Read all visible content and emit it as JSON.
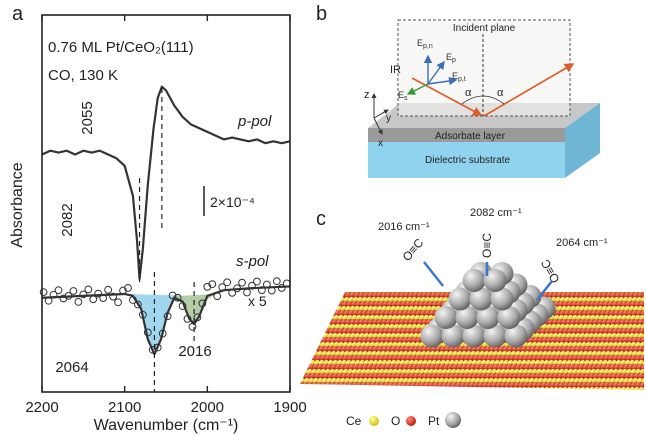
{
  "panel_labels": [
    "a",
    "b",
    "c"
  ],
  "chart_data": {
    "type": "line",
    "annotations": [
      "0.76 ML Pt/CeO₂(111)",
      "CO, 130 K"
    ],
    "x_label": "Wavenumber (cm⁻¹)",
    "y_label": "Absorbance",
    "xlim": [
      2200,
      1900
    ],
    "xticks": [
      2200,
      2100,
      2000,
      1900
    ],
    "ylim": [
      0,
      100
    ],
    "vlines": [
      2082,
      2055,
      2064,
      2016
    ],
    "scale_bar": "2×10⁻⁴",
    "multiplier": "x 5",
    "series": [
      {
        "name": "p-pol",
        "style": "line",
        "color": "#333333",
        "x": [
          2200,
          2190,
          2180,
          2170,
          2160,
          2150,
          2140,
          2130,
          2120,
          2110,
          2100,
          2090,
          2085,
          2082,
          2078,
          2072,
          2065,
          2060,
          2055,
          2050,
          2040,
          2030,
          2020,
          2010,
          2000,
          1990,
          1980,
          1970,
          1960,
          1950,
          1940,
          1930,
          1920,
          1910,
          1900
        ],
        "values": [
          63,
          64,
          63.5,
          64,
          63,
          64,
          63.5,
          64,
          63,
          62,
          60,
          52,
          40,
          30,
          38,
          55,
          70,
          78,
          81,
          80,
          76,
          73,
          71,
          70,
          69,
          68,
          67,
          67.5,
          67,
          66.5,
          67,
          66,
          66.5,
          66,
          66.5
        ]
      },
      {
        "name": "s-pol",
        "style": "line",
        "color": "#333333",
        "x": [
          2200,
          2150,
          2100,
          2090,
          2080,
          2072,
          2064,
          2056,
          2048,
          2040,
          2030,
          2022,
          2016,
          2010,
          2000,
          1980,
          1950,
          1900
        ],
        "values": [
          25,
          25.5,
          26,
          25.5,
          22,
          14,
          10,
          14,
          21,
          25,
          24,
          19.5,
          18,
          20,
          25.5,
          27,
          27.5,
          28
        ]
      },
      {
        "style": "points",
        "color": "#333333",
        "x": [
          2198,
          2192,
          2186,
          2180,
          2174,
          2168,
          2162,
          2156,
          2150,
          2144,
          2138,
          2132,
          2126,
          2120,
          2114,
          2108,
          2102,
          2096,
          2090,
          2084,
          2078,
          2072,
          2066,
          2060,
          2054,
          2048,
          2042,
          2036,
          2030,
          2024,
          2018,
          2012,
          2006,
          2000,
          1994,
          1988,
          1982,
          1976,
          1970,
          1964,
          1958,
          1952,
          1946,
          1940,
          1934,
          1928,
          1922,
          1916,
          1910,
          1904
        ],
        "values": [
          26.5,
          24.2,
          25.8,
          27,
          24.8,
          25.5,
          26.8,
          23.9,
          25.9,
          27.2,
          24.6,
          26.1,
          24.9,
          27.1,
          25.3,
          23.8,
          26.9,
          27.6,
          24.4,
          23.2,
          20.5,
          15.8,
          11.2,
          11.8,
          15.5,
          20.1,
          25.6,
          25,
          22.8,
          19.4,
          17.3,
          19.8,
          23.5,
          27.9,
          28.6,
          25.4,
          27.8,
          29.1,
          26.3,
          27.5,
          29,
          26.4,
          28.2,
          29.3,
          27,
          28.5,
          26.9,
          29.4,
          27.6,
          28.8
        ]
      },
      {
        "style": "area",
        "color": "#8fd0ec",
        "x": [
          2100,
          2090,
          2080,
          2072,
          2064,
          2056,
          2048,
          2040,
          2030
        ],
        "values": [
          26,
          25.8,
          22,
          14,
          10,
          14,
          21,
          25,
          25.6
        ]
      },
      {
        "style": "area",
        "color": "#a8c496",
        "x": [
          2040,
          2030,
          2022,
          2016,
          2010,
          2000,
          1990
        ],
        "values": [
          25.4,
          24,
          19.5,
          18,
          20,
          24.5,
          26
        ]
      }
    ]
  },
  "diagram_b": {
    "plane": "Incident plane",
    "beam": "IR",
    "fields": [
      "E",
      "E",
      "E",
      "E"
    ],
    "field_subs": [
      "p,n",
      "p",
      "p,t",
      "s"
    ],
    "angles": [
      "α",
      "α"
    ],
    "axes": [
      "z",
      "y",
      "x"
    ],
    "layers": [
      "Adsorbate layer",
      "Dielectric substrate"
    ]
  },
  "illustration_c": {
    "frequencies": [
      "2016 cm⁻¹",
      "2082 cm⁻¹",
      "2064 cm⁻¹"
    ],
    "molecules": [
      "O≡C",
      "O≡C",
      "O≡C"
    ],
    "legend": [
      "Ce",
      "O",
      "Pt"
    ]
  }
}
